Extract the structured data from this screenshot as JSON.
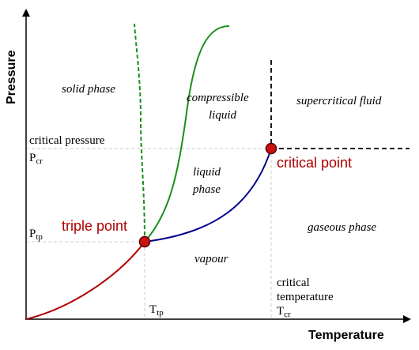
{
  "axes": {
    "x_label": "Temperature",
    "y_label": "Pressure"
  },
  "regions": {
    "solid": "solid phase",
    "compressible_line1": "compressible",
    "compressible_line2": "liquid",
    "liquid_line1": "liquid",
    "liquid_line2": "phase",
    "supercritical": "supercritical fluid",
    "gaseous": "gaseous phase",
    "vapour": "vapour"
  },
  "annotations": {
    "critical_pressure": "critical pressure",
    "p_cr_main": "P",
    "p_cr_sub": "cr",
    "p_tp_main": "P",
    "p_tp_sub": "tp",
    "t_tp_main": "T",
    "t_tp_sub": "tp",
    "critical_temp_line1": "critical",
    "critical_temp_line2": "temperature",
    "t_cr_main": "T",
    "t_cr_sub": "cr"
  },
  "points": {
    "triple": "triple point",
    "critical": "critical point"
  },
  "colors": {
    "sublimation_curve": "#b00000",
    "vaporization_curve": "#00008b",
    "melting_curve": "#1a8f1a",
    "point_fill": "#cc1111",
    "point_label": "#b00000",
    "guide_line": "#cccccc"
  }
}
